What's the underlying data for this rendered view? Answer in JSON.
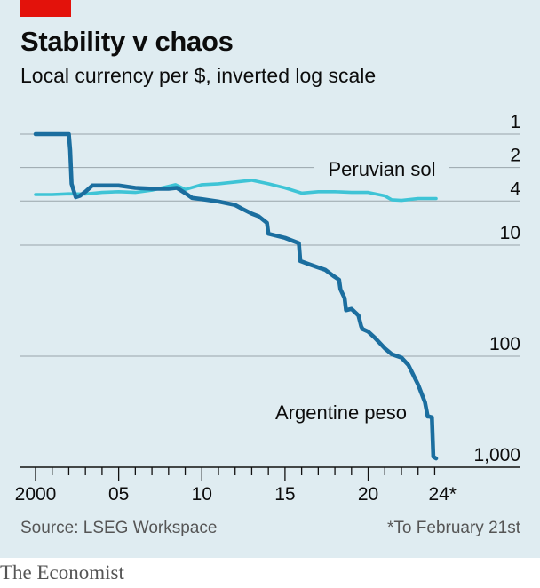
{
  "header": {
    "title": "Stability v chaos",
    "subtitle": "Local currency per $, inverted log scale"
  },
  "footer": {
    "source": "Source: LSEG Workspace",
    "note": "*To February 21st",
    "brand": "The Economist"
  },
  "colors": {
    "background": "#dfecf1",
    "accent_red": "#e3120b",
    "argentine_peso": "#1b6e9f",
    "peruvian_sol": "#3ec4d6",
    "gridline": "#9aa5ab"
  },
  "chart_data": {
    "type": "line",
    "title": "Stability v chaos",
    "subtitle": "Local currency per $, inverted log scale",
    "y_scale": "log",
    "y_inverted": true,
    "ylim": [
      1,
      1000
    ],
    "y_ticks": [
      1,
      2,
      4,
      10,
      100,
      1000
    ],
    "y_tick_labels": [
      "1",
      "2",
      "4",
      "10",
      "100",
      "1,000"
    ],
    "y_axis_side": "right",
    "xlim": [
      "2000-01",
      "2024-02"
    ],
    "x_ticks": [
      "2000",
      "2005",
      "2010",
      "2015",
      "2020",
      "2024"
    ],
    "x_tick_labels": [
      "2000",
      "05",
      "10",
      "15",
      "20",
      "24*"
    ],
    "grid": true,
    "series": [
      {
        "name": "Argentine peso",
        "color": "#1b6e9f",
        "x": [
          "2000-01",
          "2001-12",
          "2002-01",
          "2002-02",
          "2002-03",
          "2002-06",
          "2002-09",
          "2003-01",
          "2003-06",
          "2004-01",
          "2005-01",
          "2006-01",
          "2007-01",
          "2008-01",
          "2008-07",
          "2009-01",
          "2009-06",
          "2010-01",
          "2011-01",
          "2012-01",
          "2012-06",
          "2013-01",
          "2013-06",
          "2013-12",
          "2014-01",
          "2015-01",
          "2015-11",
          "2015-12",
          "2016-06",
          "2017-01",
          "2017-06",
          "2017-12",
          "2018-04",
          "2018-05",
          "2018-08",
          "2018-09",
          "2019-01",
          "2019-06",
          "2019-08",
          "2019-09",
          "2020-01",
          "2020-06",
          "2021-01",
          "2021-06",
          "2022-01",
          "2022-06",
          "2023-01",
          "2023-06",
          "2023-08",
          "2023-09",
          "2023-11",
          "2023-12",
          "2024-02"
        ],
        "values": [
          1,
          1,
          1,
          1.4,
          2.8,
          3.7,
          3.6,
          3.3,
          2.9,
          2.9,
          2.9,
          3.05,
          3.1,
          3.1,
          3.05,
          3.4,
          3.75,
          3.85,
          4.05,
          4.35,
          4.7,
          5.2,
          5.5,
          6.3,
          7.9,
          8.6,
          9.6,
          13.9,
          14.8,
          15.9,
          16.7,
          19,
          20.5,
          25,
          30,
          38.5,
          37.5,
          43,
          54,
          57,
          60,
          68.5,
          85,
          96,
          103,
          120,
          180,
          260,
          350,
          350,
          355,
          805,
          833
        ]
      },
      {
        "name": "Peruvian sol",
        "color": "#3ec4d6",
        "x": [
          "2000-01",
          "2001-01",
          "2002-01",
          "2003-01",
          "2004-01",
          "2005-01",
          "2006-01",
          "2007-01",
          "2008-01",
          "2008-06",
          "2009-01",
          "2010-01",
          "2011-01",
          "2012-01",
          "2013-01",
          "2014-01",
          "2015-01",
          "2016-01",
          "2017-01",
          "2018-01",
          "2019-01",
          "2020-01",
          "2021-01",
          "2021-06",
          "2022-01",
          "2023-01",
          "2024-02"
        ],
        "values": [
          3.5,
          3.5,
          3.45,
          3.46,
          3.35,
          3.3,
          3.35,
          3.2,
          2.95,
          2.85,
          3.15,
          2.85,
          2.8,
          2.7,
          2.6,
          2.8,
          3.05,
          3.4,
          3.3,
          3.3,
          3.35,
          3.35,
          3.6,
          3.9,
          3.95,
          3.8,
          3.8
        ]
      }
    ],
    "annotations": [
      {
        "text": "Peruvian sol",
        "series": "Peruvian sol"
      },
      {
        "text": "Argentine peso",
        "series": "Argentine peso"
      }
    ]
  }
}
